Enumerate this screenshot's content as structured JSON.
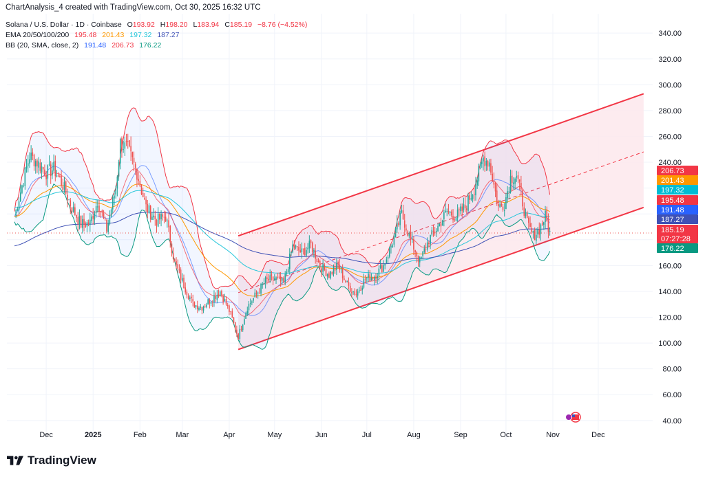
{
  "header": {
    "publisher": "ChartAnalysis_4 created with TradingView.com, Oct 30, 2025 16:32 UTC"
  },
  "legend": {
    "symbol": "Solana / U.S. Dollar · 1D · Coinbase",
    "o_label": "O",
    "o": "193.92",
    "h_label": "H",
    "h": "198.20",
    "l_label": "L",
    "l": "183.94",
    "c_label": "C",
    "c": "185.19",
    "change": "−8.76 (−4.52%)",
    "ema_label": "EMA 20/50/100/200",
    "ema20": "195.48",
    "ema50": "201.43",
    "ema100": "197.32",
    "ema200": "187.27",
    "bb_label": "BB (20, SMA, close, 2)",
    "bb_basis": "191.48",
    "bb_upper": "206.73",
    "bb_lower": "176.22"
  },
  "colors": {
    "up": "#26a69a",
    "down": "#ef5350",
    "ema20": "#f23645",
    "ema50": "#ff9800",
    "ema100": "#26c6da",
    "ema200": "#3f51b5",
    "bb_basis": "#2962ff",
    "bb_upper": "#f23645",
    "bb_lower": "#089981",
    "channel": "#f23645",
    "channel_fill": "#fde8ec"
  },
  "price_tags": [
    {
      "value": "206.73",
      "color": "#f23645"
    },
    {
      "value": "201.43",
      "color": "#ff9800"
    },
    {
      "value": "197.32",
      "color": "#00bcd4"
    },
    {
      "value": "195.48",
      "color": "#f23645"
    },
    {
      "value": "191.48",
      "color": "#2962ff"
    },
    {
      "value": "187.27",
      "color": "#3f51b5"
    },
    {
      "value": "185.19",
      "color": "#f23645"
    },
    {
      "value": "07:27:28",
      "color": "#f23645"
    },
    {
      "value": "176.22",
      "color": "#089981"
    }
  ],
  "footer": {
    "brand": "TradingView"
  },
  "chart_data": {
    "type": "candlestick",
    "title": "Solana / U.S. Dollar · 1D · Coinbase",
    "y_ticks": [
      40,
      60,
      80,
      100,
      120,
      140,
      160,
      180,
      200,
      220,
      240,
      260,
      280,
      300,
      320,
      340
    ],
    "y_tick_labels": [
      "40.00",
      "60.00",
      "80.00",
      "100.00",
      "120.00",
      "140.00",
      "160.00",
      "180.00",
      "200.00",
      "220.00",
      "240.00",
      "260.00",
      "280.00",
      "300.00",
      "320.00",
      "340.00"
    ],
    "x_tick_labels": [
      "Dec",
      "2025",
      "Feb",
      "Mar",
      "Apr",
      "May",
      "Jun",
      "Jul",
      "Aug",
      "Sep",
      "Oct",
      "Nov",
      "Dec"
    ],
    "ylim": [
      25,
      355
    ],
    "close_series": [
      {
        "date": "2024-11-10",
        "close": 198
      },
      {
        "date": "2024-11-15",
        "close": 222
      },
      {
        "date": "2024-11-20",
        "close": 245
      },
      {
        "date": "2024-11-25",
        "close": 240
      },
      {
        "date": "2024-12-01",
        "close": 232
      },
      {
        "date": "2024-12-06",
        "close": 235
      },
      {
        "date": "2024-12-12",
        "close": 222
      },
      {
        "date": "2024-12-18",
        "close": 205
      },
      {
        "date": "2024-12-24",
        "close": 192
      },
      {
        "date": "2024-12-30",
        "close": 193
      },
      {
        "date": "2025-01-04",
        "close": 210
      },
      {
        "date": "2025-01-10",
        "close": 188
      },
      {
        "date": "2025-01-16",
        "close": 220
      },
      {
        "date": "2025-01-19",
        "close": 255
      },
      {
        "date": "2025-01-24",
        "close": 250
      },
      {
        "date": "2025-01-30",
        "close": 232
      },
      {
        "date": "2025-02-05",
        "close": 205
      },
      {
        "date": "2025-02-12",
        "close": 195
      },
      {
        "date": "2025-02-18",
        "close": 198
      },
      {
        "date": "2025-02-24",
        "close": 162
      },
      {
        "date": "2025-03-02",
        "close": 145
      },
      {
        "date": "2025-03-08",
        "close": 130
      },
      {
        "date": "2025-03-14",
        "close": 128
      },
      {
        "date": "2025-03-20",
        "close": 134
      },
      {
        "date": "2025-03-26",
        "close": 140
      },
      {
        "date": "2025-04-01",
        "close": 125
      },
      {
        "date": "2025-04-07",
        "close": 105
      },
      {
        "date": "2025-04-13",
        "close": 128
      },
      {
        "date": "2025-04-19",
        "close": 138
      },
      {
        "date": "2025-04-25",
        "close": 148
      },
      {
        "date": "2025-05-01",
        "close": 150
      },
      {
        "date": "2025-05-07",
        "close": 146
      },
      {
        "date": "2025-05-13",
        "close": 175
      },
      {
        "date": "2025-05-19",
        "close": 170
      },
      {
        "date": "2025-05-25",
        "close": 176
      },
      {
        "date": "2025-05-31",
        "close": 160
      },
      {
        "date": "2025-06-06",
        "close": 153
      },
      {
        "date": "2025-06-12",
        "close": 160
      },
      {
        "date": "2025-06-18",
        "close": 145
      },
      {
        "date": "2025-06-24",
        "close": 138
      },
      {
        "date": "2025-06-30",
        "close": 150
      },
      {
        "date": "2025-07-06",
        "close": 152
      },
      {
        "date": "2025-07-12",
        "close": 160
      },
      {
        "date": "2025-07-18",
        "close": 178
      },
      {
        "date": "2025-07-24",
        "close": 200
      },
      {
        "date": "2025-07-30",
        "close": 180
      },
      {
        "date": "2025-08-05",
        "close": 163
      },
      {
        "date": "2025-08-11",
        "close": 180
      },
      {
        "date": "2025-08-17",
        "close": 190
      },
      {
        "date": "2025-08-23",
        "close": 202
      },
      {
        "date": "2025-08-29",
        "close": 198
      },
      {
        "date": "2025-09-04",
        "close": 205
      },
      {
        "date": "2025-09-10",
        "close": 220
      },
      {
        "date": "2025-09-16",
        "close": 243
      },
      {
        "date": "2025-09-20",
        "close": 240
      },
      {
        "date": "2025-09-26",
        "close": 205
      },
      {
        "date": "2025-09-30",
        "close": 208
      },
      {
        "date": "2025-10-04",
        "close": 228
      },
      {
        "date": "2025-10-08",
        "close": 230
      },
      {
        "date": "2025-10-11",
        "close": 215
      },
      {
        "date": "2025-10-15",
        "close": 192
      },
      {
        "date": "2025-10-19",
        "close": 183
      },
      {
        "date": "2025-10-23",
        "close": 188
      },
      {
        "date": "2025-10-27",
        "close": 198
      },
      {
        "date": "2025-10-30",
        "close": 185.19
      }
    ],
    "channel": {
      "lower": [
        {
          "date": "2025-04-07",
          "value": 95
        },
        {
          "date": "2025-12-31",
          "value": 205
        }
      ],
      "upper": [
        {
          "date": "2025-04-07",
          "value": 183
        },
        {
          "date": "2025-12-31",
          "value": 293
        }
      ],
      "mid_dashed": [
        {
          "date": "2025-04-07",
          "value": 139
        },
        {
          "date": "2025-12-31",
          "value": 248
        }
      ]
    },
    "last": {
      "open": 193.92,
      "high": 198.2,
      "low": 183.94,
      "close": 185.19,
      "change": -8.76,
      "change_pct": -4.52
    }
  }
}
